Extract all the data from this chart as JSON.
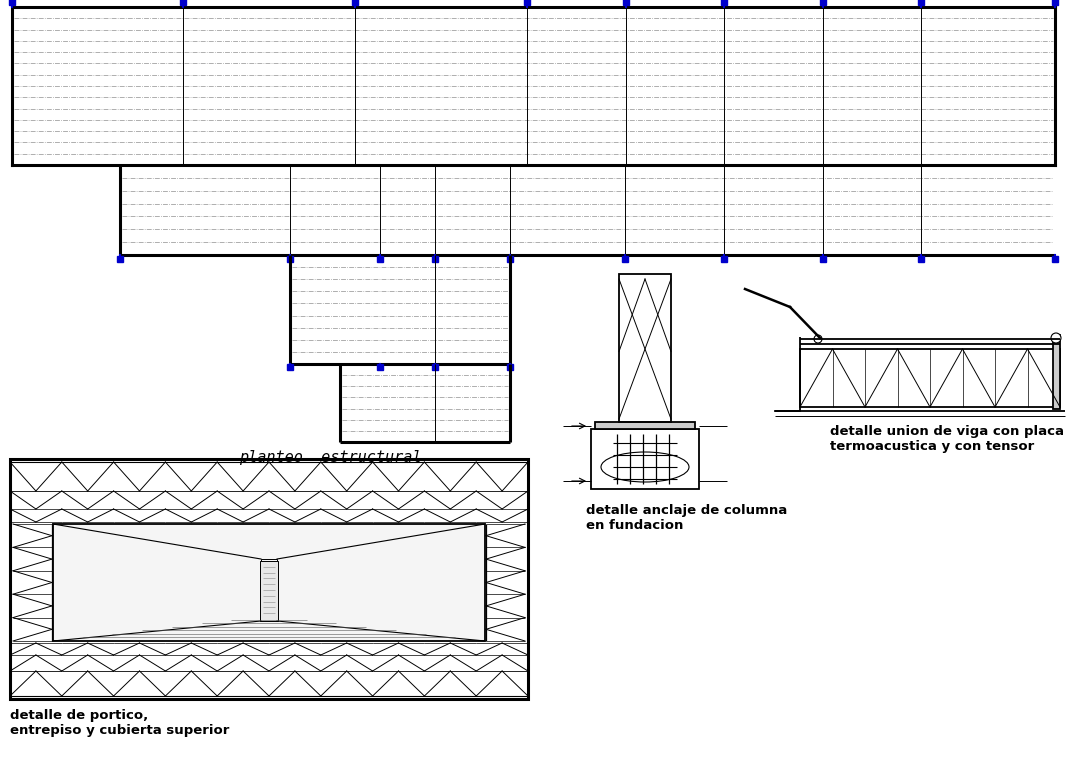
{
  "bg_color": "#ffffff",
  "line_color": "#000000",
  "blue_color": "#0000cc",
  "dash_color": "#aaaaaa",
  "label_planteo": "planteo  estructural",
  "label_portico": "detalle de portico,\nentrepiso y cubierta superior",
  "label_anclaje": "detalle anclaje de columna\nen fundacion",
  "label_union": "detalle union de viga con placa\ntermoacustica y con tensor",
  "figsize": [
    10.74,
    7.57
  ],
  "dpi": 100
}
